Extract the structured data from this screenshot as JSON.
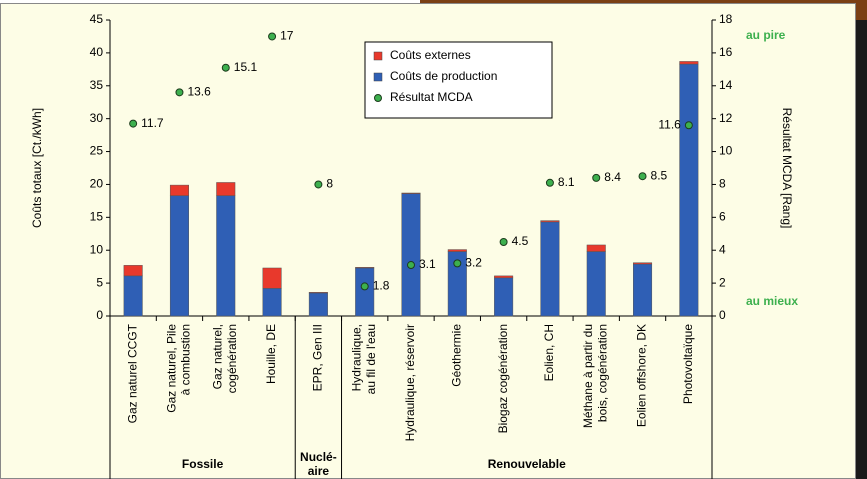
{
  "chart_data": {
    "type": "bar",
    "y_label": "Coûts totaux [Ct./kWh]",
    "y2_label": "Résultat MCDA [Rang]",
    "annotations": [
      "au pire",
      "au mieux"
    ],
    "categories": [
      "Gaz naturel CCGT",
      "Gaz naturel, Pile\nà combustion",
      "Gaz naturel,\ncogénération",
      "Houille, DE",
      "EPR, Gen III",
      "Hydraulique,\nau fil de l'eau",
      "Hydraulique, réservoir",
      "Géothermie",
      "Biogaz cogénération",
      "Eolien, CH",
      "Méthane à partir du\nbois, cogénération",
      "Eolien offshore, DK",
      "Photovoltaïque"
    ],
    "groups": [
      {
        "name": "Fossile",
        "size": 4
      },
      {
        "name": "Nuclé-\naire",
        "size": 1
      },
      {
        "name": "Renouvelable",
        "size": 8
      }
    ],
    "series": [
      {
        "name": "Coûts externes",
        "type": "bar",
        "color": "#e8392c",
        "values": [
          1.6,
          1.6,
          2.0,
          3.1,
          0.1,
          0.1,
          0.1,
          0.3,
          0.3,
          0.2,
          1.0,
          0.2,
          0.4
        ]
      },
      {
        "name": "Coûts de production",
        "type": "bar",
        "color": "#2f5fb5",
        "values": [
          6.1,
          18.3,
          18.3,
          4.2,
          3.5,
          7.3,
          18.6,
          9.8,
          5.8,
          14.3,
          9.8,
          7.9,
          38.3
        ]
      },
      {
        "name": "Résultat MCDA",
        "type": "scatter",
        "axis": "y2",
        "color": "#3db04e",
        "values": [
          11.7,
          13.6,
          15.1,
          17,
          8,
          1.8,
          3.1,
          3.2,
          4.5,
          8.1,
          8.4,
          8.5,
          11.6
        ]
      }
    ],
    "ylim": [
      0,
      45
    ],
    "yticks": [
      0,
      5,
      10,
      15,
      20,
      25,
      30,
      35,
      40,
      45
    ],
    "y2lim": [
      0,
      18
    ],
    "y2ticks": [
      0,
      2,
      4,
      6,
      8,
      10,
      12,
      14,
      16,
      18
    ],
    "grid": false
  }
}
